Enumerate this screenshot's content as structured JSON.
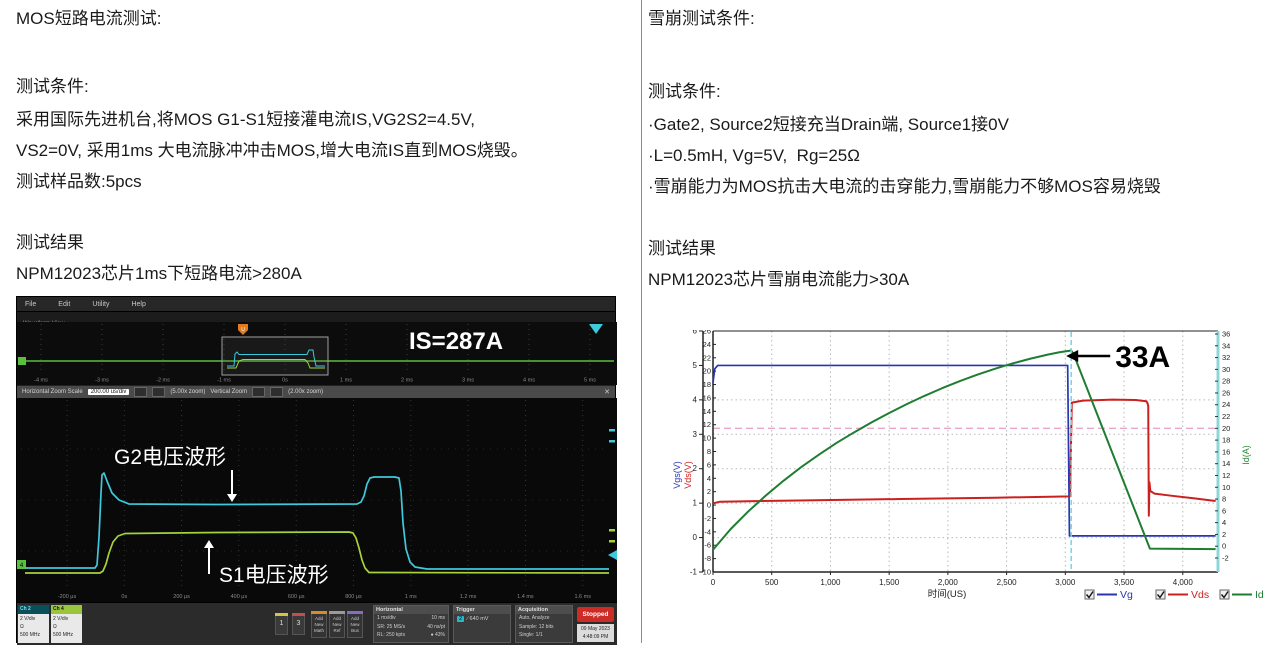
{
  "left_panel": {
    "title": "MOS短路电流测试:",
    "section_label": "测试条件:",
    "condition_lines": [
      "采用国际先进机台,将MOS G1-S1短接灌电流IS,VG2S2=4.5V,",
      "VS2=0V, 采用1ms 大电流脉冲冲击MOS,增大电流IS直到MOS烧毁。",
      "测试样品数:5pcs"
    ],
    "result_label": "测试结果",
    "result_line": "NPM12023芯片1ms下短路电流>280A"
  },
  "right_panel": {
    "title": "雪崩测试条件:",
    "section_label": "测试条件:",
    "condition_lines": [
      "·Gate2, Source2短接充当Drain端, Source1接0V",
      "·L=0.5mH, Vg=5V,  Rg=25Ω",
      "·雪崩能力为MOS抗击大电流的击穿能力,雪崩能力不够MOS容易烧毁"
    ],
    "result_label": "测试结果",
    "result_line": "NPM12023芯片雪崩电流能力>30A"
  },
  "scope": {
    "menu_items": [
      "File",
      "Edit",
      "Utility",
      "Help"
    ],
    "view_label": "Waveform View",
    "annotation_is": "IS=287A",
    "overview_time_labels": [
      "-4 ms",
      "-3 ms",
      "-2 ms",
      "-1 ms",
      "0s",
      "1 ms",
      "2 ms",
      "3 ms",
      "4 ms",
      "5 ms"
    ],
    "zoom_bar": {
      "h_label": "Horizontal Zoom Scale",
      "scale_value": "200.00 us/div",
      "h_zoom": "(5.00x zoom)",
      "v_label": "Vertical Zoom",
      "v_zoom": "(2.00x zoom)",
      "close": "✕"
    },
    "main_time_labels": [
      "-200 μs",
      "0s",
      "200 μs",
      "400 μs",
      "600 μs",
      "800 μs",
      "1 ms",
      "1.2 ms",
      "1.4 ms",
      "1.6 ms"
    ],
    "wave_label_g2": "G2电压波形",
    "wave_label_s1": "S1电压波形",
    "channels": [
      {
        "name": "Ch 2",
        "lines": [
          "2 V/div",
          "Ω",
          "500 MHz"
        ],
        "color": "#0a4f5a",
        "fg": "#7fdce8"
      },
      {
        "name": "Ch 4",
        "lines": [
          "2 V/div",
          "Ω",
          "500 MHz"
        ],
        "color": "#9bc53d",
        "fg": "#111111"
      }
    ],
    "wave_buttons": [
      {
        "label": "1",
        "stripe": "#d4c24a"
      },
      {
        "label": "3",
        "stripe": "#c0504d"
      }
    ],
    "add_buttons": [
      {
        "lines": [
          "Add",
          "New",
          "Math"
        ],
        "stripe": "#d78a2e"
      },
      {
        "lines": [
          "Add",
          "New",
          "Ref"
        ],
        "stripe": "#9a9a9a"
      },
      {
        "lines": [
          "Add",
          "New",
          "Bus"
        ],
        "stripe": "#8a6bbf"
      }
    ],
    "horizontal_panel": {
      "title": "Horizontal",
      "rows": [
        [
          "1 ms/div",
          "10 ms"
        ],
        [
          "SR: 25 MS/s",
          "40 ns/pt"
        ],
        [
          "RL: 250 kpts",
          "● 43%"
        ]
      ]
    },
    "trigger_panel": {
      "title": "Trigger",
      "ch": "2",
      "slope": "∕",
      "level": "640 mV"
    },
    "acquisition_panel": {
      "title": "Acquisition",
      "rows": [
        "Auto,   Analyze",
        "Sample: 12 bits",
        "Single: 1/1"
      ]
    },
    "stopped_label": "Stopped",
    "datetime": [
      "09 May 2023",
      "4:48:09 PM"
    ],
    "colors": {
      "cyan": "#3ec9dd",
      "green": "#a6d23c",
      "baseline_green": "#5abf3f",
      "trigger_orange": "#e07b20"
    },
    "waveforms": {
      "cyan": [
        [
          8,
          271
        ],
        [
          78,
          271
        ],
        [
          80,
          268
        ],
        [
          82,
          240
        ],
        [
          84,
          196
        ],
        [
          85,
          178
        ],
        [
          87,
          176
        ],
        [
          90,
          184
        ],
        [
          95,
          196
        ],
        [
          102,
          203
        ],
        [
          112,
          207
        ],
        [
          200,
          207.5
        ],
        [
          340,
          207
        ],
        [
          344,
          205
        ],
        [
          347,
          199
        ],
        [
          350,
          187
        ],
        [
          353,
          181
        ],
        [
          357,
          180
        ],
        [
          378,
          180
        ],
        [
          382,
          181
        ],
        [
          384,
          194
        ],
        [
          386,
          226
        ],
        [
          389,
          252
        ],
        [
          393,
          265
        ],
        [
          398,
          270
        ],
        [
          410,
          272
        ],
        [
          592,
          272
        ]
      ],
      "green": [
        [
          8,
          276
        ],
        [
          83,
          276
        ],
        [
          86,
          274
        ],
        [
          89,
          267
        ],
        [
          92,
          256
        ],
        [
          96,
          245
        ],
        [
          101,
          239
        ],
        [
          108,
          236.5
        ],
        [
          200,
          235.5
        ],
        [
          332,
          235
        ],
        [
          336,
          236
        ],
        [
          339,
          241
        ],
        [
          342,
          251
        ],
        [
          345,
          263
        ],
        [
          348,
          271
        ],
        [
          352,
          275.5
        ],
        [
          592,
          276
        ]
      ],
      "cyan_mini": [
        [
          210,
          69
        ],
        [
          217,
          69
        ],
        [
          218,
          57
        ],
        [
          220,
          55
        ],
        [
          222,
          57.5
        ],
        [
          290,
          57.5
        ],
        [
          292,
          53
        ],
        [
          296,
          53
        ],
        [
          297,
          60
        ],
        [
          299,
          69
        ],
        [
          308,
          69
        ]
      ],
      "green_mini": [
        [
          210,
          71
        ],
        [
          219,
          71
        ],
        [
          222,
          64
        ],
        [
          226,
          62.5
        ],
        [
          288,
          62.5
        ],
        [
          291,
          66
        ],
        [
          293,
          71
        ],
        [
          308,
          71
        ]
      ]
    }
  },
  "chart_data": {
    "type": "line",
    "xlabel": "时间(US)",
    "x_range": [
      0,
      4300
    ],
    "x_ticks": [
      0,
      500,
      1000,
      1500,
      2000,
      2500,
      3000,
      3500,
      4000
    ],
    "x_tick_labels": [
      "0",
      "500",
      "1,000",
      "1,500",
      "2,000",
      "2,500",
      "3,000",
      "3,500",
      "4,000"
    ],
    "grid": true,
    "axes": {
      "vgs": {
        "label": "Vgs(V)",
        "range": [
          -1,
          6
        ],
        "ticks": [
          6,
          5,
          4,
          3,
          2,
          1,
          0,
          -1
        ],
        "color": "#2a35b0"
      },
      "vds": {
        "label": "Vds(V)",
        "range": [
          -10,
          26
        ],
        "ticks": [
          26,
          24,
          22,
          20,
          18,
          16,
          14,
          12,
          10,
          8,
          6,
          4,
          2,
          0,
          -2,
          -4,
          -6,
          -8,
          -10
        ],
        "color": "#cc2020"
      },
      "id": {
        "label": "Id(A)",
        "range": [
          -2,
          36
        ],
        "ticks": [
          36,
          34,
          32,
          30,
          28,
          26,
          24,
          22,
          20,
          18,
          16,
          14,
          12,
          10,
          8,
          6,
          4,
          2,
          0,
          -2
        ],
        "color": "#2e8b3a"
      }
    },
    "ref_line": {
      "axis": "id",
      "value": 20,
      "color": "#e8a6c8"
    },
    "marker_line": {
      "t": 3050,
      "color": "#74d4e4"
    },
    "annotation": {
      "text": "33A",
      "at_t": 3050,
      "at_value": 33
    },
    "series": [
      {
        "name": "Vg",
        "axis": "vgs",
        "color": "#2a35b0",
        "points": [
          [
            0,
            4.5
          ],
          [
            15,
            4.9
          ],
          [
            40,
            5
          ],
          [
            3020,
            5
          ],
          [
            3035,
            0.05
          ],
          [
            4280,
            0.05
          ]
        ]
      },
      {
        "name": "Vds",
        "axis": "vds",
        "color": "#cc2020",
        "points": [
          [
            0,
            0.25
          ],
          [
            60,
            0.5
          ],
          [
            800,
            0.7
          ],
          [
            1600,
            0.9
          ],
          [
            2400,
            1.1
          ],
          [
            3040,
            1.3
          ],
          [
            3055,
            15.3
          ],
          [
            3150,
            15.6
          ],
          [
            3400,
            15.75
          ],
          [
            3600,
            15.7
          ],
          [
            3690,
            15.5
          ],
          [
            3700,
            15.2
          ],
          [
            3706,
            14.8
          ],
          [
            3711,
            -1.6
          ],
          [
            3716,
            3.4
          ],
          [
            3724,
            2.1
          ],
          [
            3760,
            1.7
          ],
          [
            3900,
            1.4
          ],
          [
            4100,
            1.0
          ],
          [
            4280,
            0.6
          ]
        ]
      },
      {
        "name": "Id",
        "axis": "id",
        "color": "#1e7d32",
        "points": [
          [
            0,
            -0.6
          ],
          [
            150,
            2.9
          ],
          [
            300,
            5.9
          ],
          [
            450,
            8.6
          ],
          [
            600,
            11.1
          ],
          [
            750,
            13.4
          ],
          [
            900,
            15.5
          ],
          [
            1050,
            17.5
          ],
          [
            1200,
            19.3
          ],
          [
            1350,
            21.0
          ],
          [
            1500,
            22.6
          ],
          [
            1650,
            24.1
          ],
          [
            1800,
            25.5
          ],
          [
            1950,
            26.8
          ],
          [
            2100,
            28.0
          ],
          [
            2250,
            29.1
          ],
          [
            2400,
            30.1
          ],
          [
            2550,
            31.0
          ],
          [
            2700,
            31.8
          ],
          [
            2850,
            32.5
          ],
          [
            2950,
            32.9
          ],
          [
            3050,
            33.2
          ],
          [
            3070,
            32.6
          ],
          [
            3720,
            -0.4
          ],
          [
            4280,
            -0.5
          ]
        ]
      }
    ],
    "legend": [
      {
        "label": "Vg",
        "color": "#2a35b0",
        "checked": true
      },
      {
        "label": "Vds",
        "color": "#cc2020",
        "checked": true
      },
      {
        "label": "Id",
        "color": "#1e7d32",
        "checked": true
      }
    ],
    "legend_position": "bottom-right"
  }
}
